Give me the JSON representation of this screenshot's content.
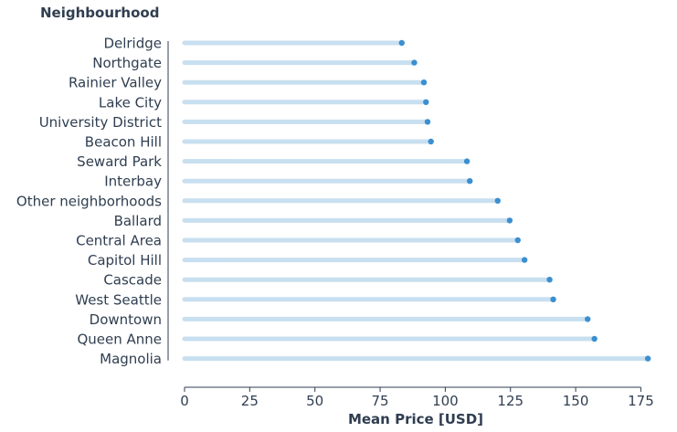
{
  "chart_data": {
    "type": "lollipop",
    "title": "",
    "ylabel": "Neighbourhood",
    "xlabel": "Mean Price [USD]",
    "xlim": [
      0,
      178
    ],
    "xticks": [
      0,
      25,
      50,
      75,
      100,
      125,
      150,
      175
    ],
    "grid": false,
    "categories": [
      "Delridge",
      "Northgate",
      "Rainier Valley",
      "Lake City",
      "University District",
      "Beacon Hill",
      "Seward Park",
      "Interbay",
      "Other neighborhoods",
      "Ballard",
      "Central Area",
      "Capitol Hill",
      "Cascade",
      "West Seattle",
      "Downtown",
      "Queen Anne",
      "Magnolia"
    ],
    "values": [
      83.3,
      88.1,
      91.8,
      92.6,
      93.2,
      94.5,
      108.3,
      109.4,
      120.1,
      124.7,
      127.8,
      130.4,
      140.0,
      141.4,
      154.6,
      157.2,
      177.7
    ],
    "colors": {
      "stem": "#c8dff0",
      "dot": "#3b8fd0",
      "text": "#2f3e50"
    }
  }
}
